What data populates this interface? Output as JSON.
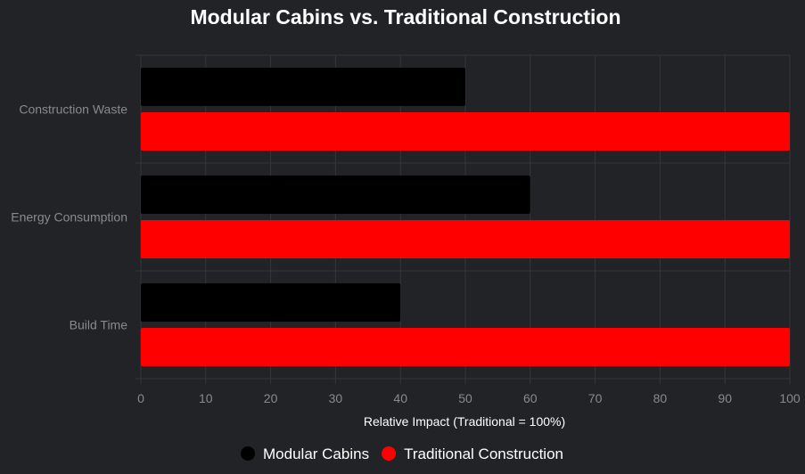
{
  "chart_data": {
    "type": "bar",
    "orientation": "horizontal",
    "title": "Modular Cabins vs. Traditional Construction",
    "xlabel": "Relative Impact (Traditional = 100%)",
    "ylabel": "",
    "categories": [
      "Construction Waste",
      "Energy Consumption",
      "Build Time"
    ],
    "xlim": [
      0,
      100
    ],
    "xticks": [
      0,
      10,
      20,
      30,
      40,
      50,
      60,
      70,
      80,
      90,
      100
    ],
    "grid": true,
    "legend_position": "bottom",
    "series": [
      {
        "name": "Modular Cabins",
        "values": [
          50,
          60,
          40
        ],
        "color": "#000000"
      },
      {
        "name": "Traditional Construction",
        "values": [
          100,
          100,
          100
        ],
        "color": "#ff0000"
      }
    ]
  }
}
